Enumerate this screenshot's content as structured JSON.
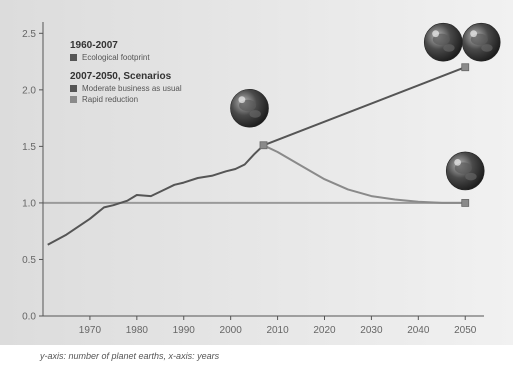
{
  "chart_data": {
    "type": "line",
    "title": "",
    "xlabel": "",
    "ylabel": "",
    "xlim": [
      1960,
      2054
    ],
    "ylim": [
      0.0,
      2.6
    ],
    "x_ticks": [
      1970,
      1980,
      1990,
      2000,
      2010,
      2020,
      2030,
      2040,
      2050
    ],
    "x_tick_labels": [
      "1970",
      "1980",
      "1990",
      "2000",
      "2010",
      "2020",
      "2030",
      "2040",
      "2050"
    ],
    "y_ticks": [
      0.0,
      0.5,
      1.0,
      1.5,
      2.0,
      2.5
    ],
    "y_tick_labels": [
      "0.0",
      "0.5",
      "1.0",
      "1.5",
      "2.0",
      "2.5"
    ],
    "grid": false,
    "series": [
      {
        "name": "Ecological footprint",
        "color": "#555555",
        "x": [
          1961,
          1965,
          1970,
          1973,
          1975,
          1978,
          1980,
          1983,
          1986,
          1988,
          1990,
          1993,
          1996,
          1999,
          2001,
          2003,
          2005,
          2007
        ],
        "y": [
          0.63,
          0.72,
          0.86,
          0.96,
          0.98,
          1.02,
          1.07,
          1.06,
          1.12,
          1.16,
          1.18,
          1.22,
          1.24,
          1.28,
          1.3,
          1.34,
          1.43,
          1.51
        ]
      },
      {
        "name": "Moderate business as usual",
        "color": "#555555",
        "x": [
          2007,
          2050
        ],
        "y": [
          1.51,
          2.2
        ]
      },
      {
        "name": "Rapid reduction",
        "color": "#8a8a8a",
        "x": [
          2007,
          2010,
          2015,
          2020,
          2025,
          2030,
          2035,
          2040,
          2045,
          2050
        ],
        "y": [
          1.51,
          1.45,
          1.33,
          1.21,
          1.12,
          1.06,
          1.03,
          1.01,
          1.0,
          1.0
        ]
      }
    ],
    "reference_line": {
      "y": 1.0,
      "color": "#9a9a9a"
    },
    "legend": {
      "placement": "top-left",
      "groups": [
        {
          "heading": "1960-2007",
          "items": [
            {
              "label": "Ecological footprint",
              "color": "#555555"
            }
          ]
        },
        {
          "heading": "2007-2050, Scenarios",
          "items": [
            {
              "label": "Moderate business as usual",
              "color": "#555555"
            },
            {
              "label": "Rapid reduction",
              "color": "#8a8a8a"
            }
          ]
        }
      ]
    },
    "earth_icons": [
      {
        "near_x": 2007,
        "near_y": 1.51,
        "count": 1
      },
      {
        "near_x": 2050,
        "near_y": 2.2,
        "count": 2
      },
      {
        "near_x": 2050,
        "near_y": 1.0,
        "count": 1
      }
    ],
    "caption": "y-axis: number of planet earths, x-axis: years"
  }
}
